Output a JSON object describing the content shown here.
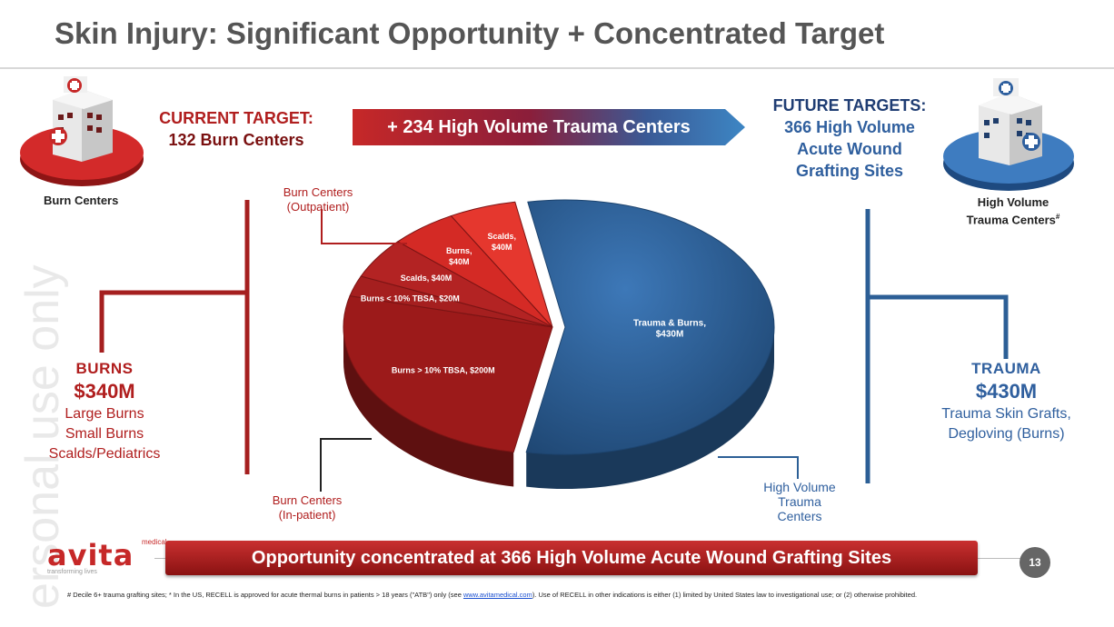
{
  "title": "Skin Injury: Significant Opportunity + Concentrated Target",
  "watermark": "ersonal use only",
  "current_target": {
    "line1": "CURRENT TARGET:",
    "line2": "132 Burn Centers"
  },
  "arrow_banner": "+ 234 High Volume Trauma Centers",
  "future_targets": {
    "line1": "FUTURE TARGETS:",
    "line2": "366 High Volume",
    "line3": "Acute Wound",
    "line4": "Grafting Sites"
  },
  "left_icon_label": "Burn Centers",
  "right_icon_label": "High Volume",
  "right_icon_label2": "Trauma Centers",
  "right_icon_sup": "#",
  "burns_summary": {
    "heading": "BURNS",
    "value": "$340M",
    "line1": "Large Burns",
    "line2": "Small Burns",
    "line3": "Scalds/Pediatrics"
  },
  "trauma_summary": {
    "heading": "TRAUMA",
    "value": "$430M",
    "line1": "Trauma Skin Grafts,",
    "line2": "Degloving (Burns)"
  },
  "group_labels": {
    "outpatient_1": "Burn Centers",
    "outpatient_2": "(Outpatient)",
    "inpatient_1": "Burn Centers",
    "inpatient_2": "(In-patient)",
    "hv_1": "High Volume",
    "hv_2": "Trauma",
    "hv_3": "Centers"
  },
  "chart_data": {
    "type": "pie",
    "title": "",
    "unit": "$M",
    "slices": [
      {
        "label": "Trauma & Burns, $430M",
        "line1": "Trauma & Burns,",
        "line2": "$430M",
        "value": 430,
        "group": "High Volume Trauma Centers",
        "color": "#2c5f96"
      },
      {
        "label": "Burns > 10% TBSA, $200M",
        "line1": "Burns > 10% TBSA, $200M",
        "line2": "",
        "value": 200,
        "group": "Burn Centers (In-patient)",
        "color": "#9c1a1a"
      },
      {
        "label": "Burns < 10% TBSA, $20M",
        "line1": "Burns < 10% TBSA, $20M",
        "line2": "",
        "value": 20,
        "group": "Burn Centers (In-patient)",
        "color": "#a51f1f"
      },
      {
        "label": "Scalds, $40M",
        "line1": "Scalds, $40M",
        "line2": "",
        "value": 40,
        "group": "Burn Centers (In-patient)",
        "color": "#b32323"
      },
      {
        "label": "Burns, $40M",
        "line1": "Burns,",
        "line2": "$40M",
        "value": 40,
        "group": "Burn Centers (Outpatient)",
        "color": "#d42a25"
      },
      {
        "label": "Scalds, $40M",
        "line1": "Scalds,",
        "line2": "$40M",
        "value": 40,
        "group": "Burn Centers (Outpatient)",
        "color": "#e5372e"
      }
    ]
  },
  "bottom_banner": "Opportunity concentrated at 366 High Volume Acute Wound Grafting Sites",
  "logo": {
    "name": "avita",
    "sup": "medical",
    "tagline": "transforming lives"
  },
  "page_number": "13",
  "footnote": {
    "pre": "# Decile 6+ trauma grafting sites; * In the US, RECELL is approved for acute thermal burns in patients > 18 years (\"ATB\") only (see ",
    "link": "www.avitamedical.com",
    "post": ").  Use of RECELL in other indications is either (1) limited by United States law to investigational use; or (2) otherwise prohibited."
  }
}
